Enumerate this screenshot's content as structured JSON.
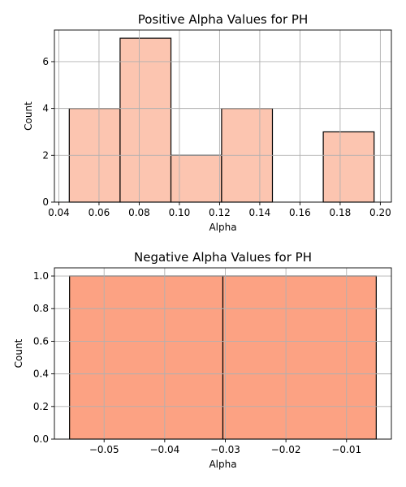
{
  "chart_data": [
    {
      "type": "bar",
      "title": "Positive Alpha Values for PH",
      "xlabel": "Alpha",
      "ylabel": "Count",
      "xlim": [
        0.0378,
        0.2055
      ],
      "ylim": [
        0,
        7.35
      ],
      "xticks": [
        0.04,
        0.06,
        0.08,
        0.1,
        0.12,
        0.14,
        0.16,
        0.18,
        0.2
      ],
      "xtick_labels": [
        "0.04",
        "0.06",
        "0.08",
        "0.10",
        "0.12",
        "0.14",
        "0.16",
        "0.18",
        "0.20"
      ],
      "yticks": [
        0,
        2,
        4,
        6
      ],
      "ytick_labels": [
        "0",
        "2",
        "4",
        "6"
      ],
      "bins": [
        {
          "x0": 0.0452,
          "x1": 0.0705,
          "value": 4
        },
        {
          "x0": 0.0705,
          "x1": 0.0958,
          "value": 7
        },
        {
          "x0": 0.0958,
          "x1": 0.121,
          "value": 2
        },
        {
          "x0": 0.121,
          "x1": 0.1463,
          "value": 4
        },
        {
          "x0": 0.1463,
          "x1": 0.1716,
          "value": 0
        },
        {
          "x0": 0.1716,
          "x1": 0.1969,
          "value": 3
        }
      ],
      "grid": true,
      "bar_color": "#fcc5b0",
      "edge_color": "#000000"
    },
    {
      "type": "bar",
      "title": "Negative Alpha Values for PH",
      "xlabel": "Alpha",
      "ylabel": "Count",
      "xlim": [
        -0.0582,
        -0.0026
      ],
      "ylim": [
        0,
        1.05
      ],
      "xticks": [
        -0.05,
        -0.04,
        -0.03,
        -0.02,
        -0.01
      ],
      "xtick_labels": [
        "−0.05",
        "−0.04",
        "−0.03",
        "−0.02",
        "−0.01"
      ],
      "yticks": [
        0,
        0.2,
        0.4,
        0.6,
        0.8,
        1.0
      ],
      "ytick_labels": [
        "0.0",
        "0.2",
        "0.4",
        "0.6",
        "0.8",
        "1.0"
      ],
      "bins": [
        {
          "x0": -0.0557,
          "x1": -0.0304,
          "value": 1
        },
        {
          "x0": -0.0304,
          "x1": -0.0051,
          "value": 1
        }
      ],
      "grid": true,
      "bar_color": "#fca283",
      "edge_color": "#000000"
    }
  ]
}
